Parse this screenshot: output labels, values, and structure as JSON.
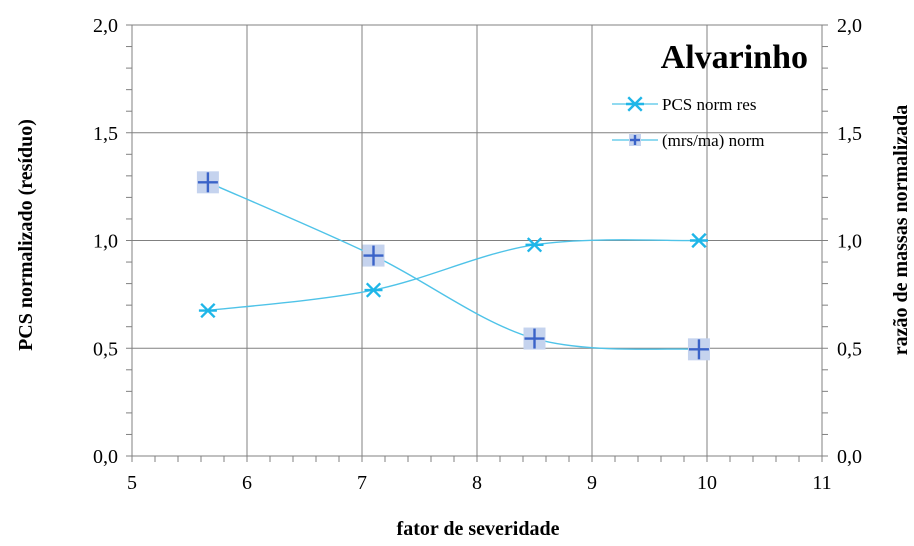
{
  "chart_data": {
    "type": "line",
    "title": "Alvarinho",
    "xlabel": "fator de severidade",
    "ylabel_left": "PCS  normalizado (resíduo)",
    "ylabel_right": "razão de massas normalizada",
    "xlim": [
      5,
      11
    ],
    "ylim": [
      0,
      2
    ],
    "y2lim": [
      0,
      2
    ],
    "x_ticks": [
      "5",
      "6",
      "7",
      "8",
      "9",
      "10",
      "11"
    ],
    "y_ticks": [
      "0,0",
      "0,5",
      "1,0",
      "1,5",
      "2,0"
    ],
    "y2_ticks": [
      "0,0",
      "0,5",
      "1,0",
      "1,5",
      "2,0"
    ],
    "grid": true,
    "legend_position": "top-right",
    "series": [
      {
        "name": "PCS norm res",
        "axis": "left",
        "marker": "asterisk",
        "color": "#1fb6e8",
        "x": [
          5.66,
          7.1,
          8.5,
          9.93
        ],
        "y": [
          0.675,
          0.77,
          0.98,
          1.0
        ]
      },
      {
        "name": "(mrs/ma) norm",
        "axis": "right",
        "marker": "plus-square",
        "color": "#3a63c8",
        "x": [
          5.66,
          7.1,
          8.5,
          9.93
        ],
        "y": [
          1.27,
          0.93,
          0.545,
          0.495
        ]
      }
    ],
    "colors": {
      "line": "#4fc3e8",
      "asterisk": "#1fb6e8",
      "plus": "#3a63c8",
      "plus_bg": "#c5d3ee",
      "grid": "#808080"
    }
  }
}
